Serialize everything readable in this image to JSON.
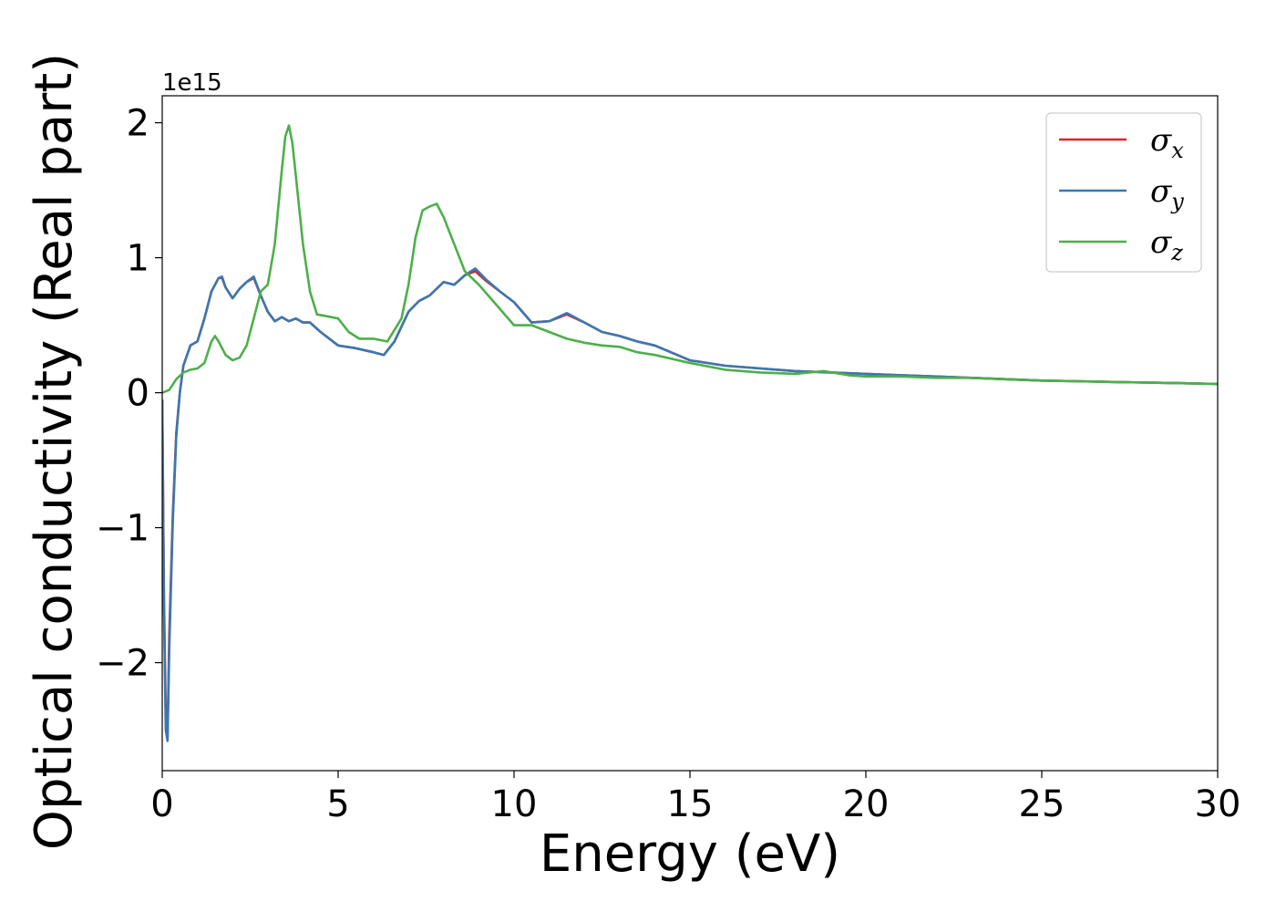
{
  "chart_data": {
    "type": "line",
    "title": "",
    "xlabel": "Energy (eV)",
    "ylabel": "Optical conductivity (Real part)",
    "y_offset_label": "1e15",
    "xlim": [
      0,
      30
    ],
    "ylim": [
      -2.8,
      2.2
    ],
    "x_ticks": [
      0,
      5,
      10,
      15,
      20,
      25,
      30
    ],
    "x_tick_labels": [
      "0",
      "5",
      "10",
      "15",
      "20",
      "25",
      "30"
    ],
    "y_ticks": [
      -2,
      -1,
      0,
      1,
      2
    ],
    "y_tick_labels": [
      "−2",
      "−1",
      "0",
      "1",
      "2"
    ],
    "grid": false,
    "legend_position": "top-right",
    "units_note": "y values in units of 1e15",
    "series": [
      {
        "name": "σx",
        "legend_symbol": "σ",
        "legend_sub": "x",
        "color": "#d62728",
        "x": [
          0,
          0.05,
          0.1,
          0.15,
          0.2,
          0.3,
          0.4,
          0.5,
          0.6,
          0.8,
          1.0,
          1.2,
          1.4,
          1.6,
          1.7,
          1.8,
          2.0,
          2.2,
          2.4,
          2.6,
          2.8,
          3.0,
          3.2,
          3.4,
          3.6,
          3.8,
          4.0,
          4.2,
          4.5,
          5.0,
          5.5,
          6.0,
          6.3,
          6.6,
          7.0,
          7.3,
          7.6,
          8.0,
          8.3,
          8.6,
          8.9,
          9.2,
          9.6,
          10.0,
          10.5,
          11.0,
          11.5,
          12.0,
          12.5,
          13.0,
          13.5,
          14.0,
          15.0,
          16.0,
          17.0,
          18.0,
          19.0,
          20.0,
          21.0,
          22.0,
          23.0,
          24.0,
          25.0,
          26.0,
          27.0,
          28.0,
          29.0,
          30.0
        ],
        "values": [
          -0.05,
          -1.5,
          -2.4,
          -2.55,
          -1.8,
          -0.9,
          -0.3,
          0.0,
          0.2,
          0.35,
          0.38,
          0.55,
          0.75,
          0.85,
          0.85,
          0.78,
          0.7,
          0.77,
          0.82,
          0.85,
          0.72,
          0.6,
          0.53,
          0.56,
          0.53,
          0.55,
          0.52,
          0.52,
          0.45,
          0.35,
          0.33,
          0.3,
          0.28,
          0.38,
          0.6,
          0.68,
          0.72,
          0.82,
          0.8,
          0.87,
          0.9,
          0.83,
          0.75,
          0.67,
          0.52,
          0.53,
          0.58,
          0.52,
          0.45,
          0.42,
          0.38,
          0.35,
          0.24,
          0.2,
          0.18,
          0.16,
          0.15,
          0.14,
          0.13,
          0.12,
          0.11,
          0.1,
          0.09,
          0.085,
          0.08,
          0.075,
          0.07,
          0.065
        ]
      },
      {
        "name": "σy",
        "legend_symbol": "σ",
        "legend_sub": "y",
        "color": "#3a78b0",
        "x": [
          0,
          0.05,
          0.1,
          0.15,
          0.2,
          0.3,
          0.4,
          0.5,
          0.6,
          0.8,
          1.0,
          1.2,
          1.4,
          1.6,
          1.7,
          1.8,
          2.0,
          2.2,
          2.4,
          2.6,
          2.8,
          3.0,
          3.2,
          3.4,
          3.6,
          3.8,
          4.0,
          4.2,
          4.5,
          5.0,
          5.5,
          6.0,
          6.3,
          6.6,
          7.0,
          7.3,
          7.6,
          8.0,
          8.3,
          8.6,
          8.9,
          9.2,
          9.6,
          10.0,
          10.5,
          11.0,
          11.5,
          12.0,
          12.5,
          13.0,
          13.5,
          14.0,
          15.0,
          16.0,
          17.0,
          18.0,
          19.0,
          20.0,
          21.0,
          22.0,
          23.0,
          24.0,
          25.0,
          26.0,
          27.0,
          28.0,
          29.0,
          30.0
        ],
        "values": [
          -0.05,
          -1.6,
          -2.5,
          -2.58,
          -1.9,
          -0.95,
          -0.32,
          0.0,
          0.2,
          0.35,
          0.38,
          0.55,
          0.75,
          0.85,
          0.86,
          0.78,
          0.7,
          0.77,
          0.82,
          0.86,
          0.72,
          0.6,
          0.53,
          0.56,
          0.53,
          0.55,
          0.52,
          0.52,
          0.45,
          0.35,
          0.33,
          0.3,
          0.28,
          0.38,
          0.6,
          0.68,
          0.72,
          0.82,
          0.8,
          0.87,
          0.92,
          0.84,
          0.75,
          0.67,
          0.52,
          0.53,
          0.59,
          0.52,
          0.45,
          0.42,
          0.38,
          0.35,
          0.24,
          0.2,
          0.18,
          0.16,
          0.15,
          0.14,
          0.13,
          0.12,
          0.11,
          0.1,
          0.09,
          0.085,
          0.08,
          0.075,
          0.07,
          0.065
        ]
      },
      {
        "name": "σz",
        "legend_symbol": "σ",
        "legend_sub": "z",
        "color": "#4daf4a",
        "x": [
          0,
          0.2,
          0.4,
          0.6,
          0.8,
          1.0,
          1.2,
          1.4,
          1.5,
          1.6,
          1.8,
          2.0,
          2.2,
          2.4,
          2.6,
          2.8,
          3.0,
          3.2,
          3.4,
          3.5,
          3.6,
          3.7,
          3.8,
          4.0,
          4.2,
          4.4,
          4.6,
          5.0,
          5.3,
          5.6,
          6.0,
          6.4,
          6.8,
          7.0,
          7.2,
          7.4,
          7.6,
          7.8,
          8.0,
          8.3,
          8.6,
          9.0,
          9.5,
          10.0,
          10.5,
          11.0,
          11.5,
          12.0,
          12.5,
          13.0,
          13.5,
          14.0,
          15.0,
          16.0,
          17.0,
          18.0,
          18.8,
          19.5,
          20.0,
          21.0,
          22.0,
          23.0,
          24.0,
          25.0,
          26.0,
          27.0,
          28.0,
          29.0,
          30.0
        ],
        "values": [
          0.0,
          0.02,
          0.1,
          0.15,
          0.17,
          0.18,
          0.22,
          0.38,
          0.42,
          0.38,
          0.28,
          0.24,
          0.26,
          0.35,
          0.55,
          0.75,
          0.8,
          1.1,
          1.65,
          1.9,
          1.98,
          1.85,
          1.6,
          1.1,
          0.75,
          0.58,
          0.57,
          0.55,
          0.45,
          0.4,
          0.4,
          0.38,
          0.55,
          0.8,
          1.15,
          1.35,
          1.38,
          1.4,
          1.3,
          1.1,
          0.9,
          0.8,
          0.65,
          0.5,
          0.5,
          0.45,
          0.4,
          0.37,
          0.35,
          0.34,
          0.3,
          0.28,
          0.22,
          0.17,
          0.15,
          0.14,
          0.16,
          0.13,
          0.12,
          0.12,
          0.11,
          0.11,
          0.1,
          0.09,
          0.085,
          0.08,
          0.075,
          0.07,
          0.065
        ]
      }
    ]
  }
}
